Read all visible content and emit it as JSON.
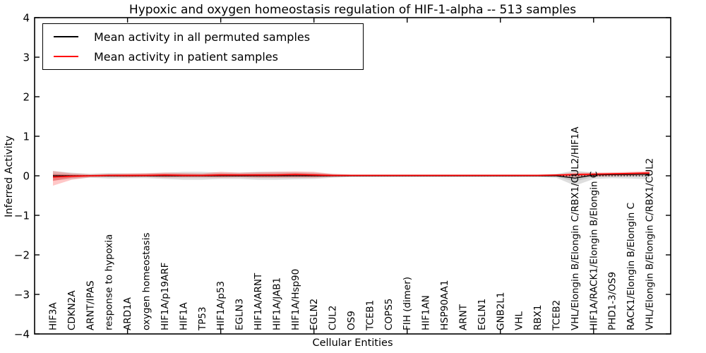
{
  "figure": {
    "title": "Hypoxic and oxygen homeostasis regulation of HIF-1-alpha -- 513 samples",
    "background_color": "#ffffff",
    "accent_red": "#ff0000",
    "accent_black": "#000000"
  },
  "legend": {
    "entries": [
      {
        "label": "Mean activity in all permuted samples",
        "color": "#000000"
      },
      {
        "label": "Mean activity in patient samples",
        "color": "#ff0000"
      }
    ]
  },
  "chart_data": {
    "type": "line",
    "title": "Hypoxic and oxygen homeostasis regulation of HIF-1-alpha -- 513 samples",
    "xlabel": "Cellular Entities",
    "ylabel": "Inferred Activity",
    "ylim": [
      -4,
      4
    ],
    "yticks": [
      4,
      3,
      2,
      1,
      0,
      -1,
      -2,
      -3,
      -4
    ],
    "x_major_tick_indices": [
      4,
      9,
      14,
      19,
      24,
      29
    ],
    "grid": false,
    "legend_position": "upper left",
    "zero_line": {
      "style": "dotted",
      "color": "#000000",
      "y": 0
    },
    "categories": [
      "HIF3A",
      "CDKN2A",
      "ARNT/IPAS",
      "response to hypoxia",
      "ARD1A",
      "oxygen homeostasis",
      "HIF1A/p19ARF",
      "HIF1A",
      "TP53",
      "HIF1A/p53",
      "EGLN3",
      "HIF1A/ARNT",
      "HIF1A/JAB1",
      "HIF1A/Hsp90",
      "EGLN2",
      "CUL2",
      "OS9",
      "TCEB1",
      "COPS5",
      "FIH (dimer)",
      "HIF1AN",
      "HSP90AA1",
      "ARNT",
      "EGLN1",
      "GNB2L1",
      "VHL",
      "RBX1",
      "TCEB2",
      "VHL/Elongin B/Elongin C/RBX1/CUL2/HIF1A",
      "HIF1A/RACK1/Elongin B/Elongin C",
      "PHD1-3/OS9",
      "RACK1/Elongin B/Elongin C",
      "VHL/Elongin B/Elongin C/RBX1/CUL2"
    ],
    "series": [
      {
        "name": "Mean activity in all permuted samples",
        "color": "#000000",
        "line_width": 1.2,
        "values": [
          0,
          0,
          0,
          0,
          0,
          0,
          0,
          0,
          0,
          0,
          0,
          0,
          0,
          0,
          0,
          0,
          0,
          0,
          0,
          0,
          0,
          0,
          0,
          0,
          0,
          0,
          0,
          0,
          -0.06,
          0.02,
          0.03,
          0.03,
          0.04
        ],
        "band_upper": [
          0.12,
          0.08,
          0.05,
          0.07,
          0.06,
          0.06,
          0.08,
          0.1,
          0.1,
          0.08,
          0.08,
          0.1,
          0.1,
          0.09,
          0.08,
          0.05,
          0.03,
          0.03,
          0.03,
          0.03,
          0.03,
          0.03,
          0.03,
          0.03,
          0.03,
          0.03,
          0.03,
          0.05,
          0.13,
          0.08,
          0.06,
          0.07,
          0.09
        ],
        "band_lower": [
          -0.12,
          -0.08,
          -0.05,
          -0.07,
          -0.06,
          -0.06,
          -0.08,
          -0.1,
          -0.1,
          -0.08,
          -0.08,
          -0.1,
          -0.1,
          -0.09,
          -0.08,
          -0.05,
          -0.03,
          -0.03,
          -0.03,
          -0.03,
          -0.03,
          -0.03,
          -0.03,
          -0.03,
          -0.03,
          -0.03,
          -0.03,
          -0.05,
          -0.25,
          -0.08,
          -0.06,
          -0.07,
          -0.09
        ]
      },
      {
        "name": "Mean activity in patient samples",
        "color": "#ff0000",
        "line_width": 1.6,
        "values": [
          -0.03,
          -0.01,
          0.0,
          0.01,
          0.01,
          0.01,
          0.02,
          0.01,
          0.01,
          0.02,
          0.02,
          0.02,
          0.02,
          0.03,
          0.02,
          0.01,
          0.01,
          0.01,
          0.01,
          0.01,
          0.01,
          0.01,
          0.01,
          0.01,
          0.01,
          0.01,
          0.01,
          0.02,
          0.03,
          0.04,
          0.05,
          0.06,
          0.07
        ],
        "band_upper": [
          0.12,
          0.06,
          0.04,
          0.05,
          0.06,
          0.07,
          0.08,
          0.07,
          0.06,
          0.1,
          0.08,
          0.09,
          0.1,
          0.11,
          0.1,
          0.05,
          0.03,
          0.03,
          0.03,
          0.03,
          0.03,
          0.03,
          0.03,
          0.03,
          0.03,
          0.03,
          0.03,
          0.04,
          0.08,
          0.08,
          0.09,
          0.1,
          0.12
        ],
        "band_lower": [
          -0.25,
          -0.1,
          -0.04,
          -0.03,
          -0.04,
          -0.03,
          -0.05,
          -0.04,
          -0.04,
          -0.05,
          -0.04,
          -0.05,
          -0.05,
          -0.05,
          -0.05,
          -0.03,
          -0.02,
          -0.02,
          -0.02,
          -0.02,
          -0.02,
          -0.02,
          -0.02,
          -0.02,
          -0.02,
          -0.02,
          -0.02,
          -0.02,
          -0.03,
          -0.02,
          -0.01,
          0.0,
          0.02
        ]
      }
    ]
  }
}
